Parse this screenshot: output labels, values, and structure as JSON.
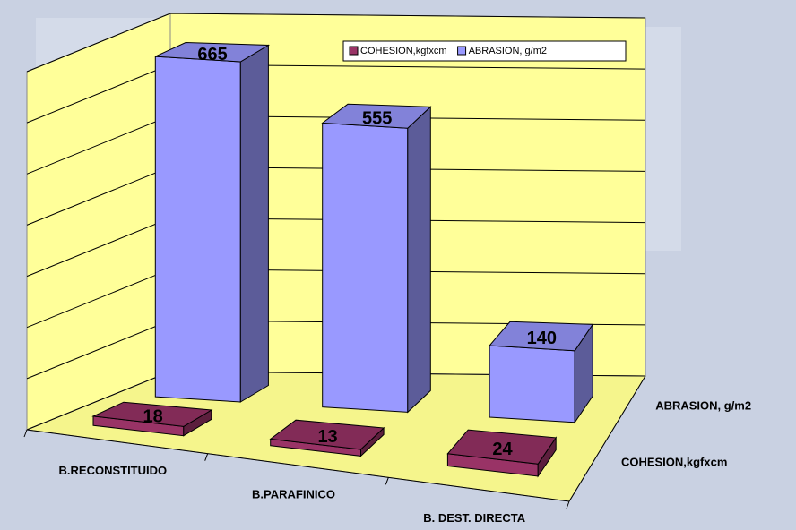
{
  "chart_data": {
    "type": "bar3d",
    "categories": [
      "B.RECONSTITUIDO",
      "B.PARAFINICO",
      "B. DEST. DIRECTA"
    ],
    "series": [
      {
        "name": "COHESION,kgfxcm",
        "color": "#993366",
        "values": [
          18,
          13,
          24
        ]
      },
      {
        "name": "ABRASION, g/m2",
        "color": "#9999ff",
        "values": [
          665,
          555,
          140
        ]
      }
    ],
    "ylim": [
      0,
      700
    ],
    "yticks": [
      0,
      100,
      200,
      300,
      400,
      500,
      600,
      700
    ],
    "grid": true,
    "legend": "top"
  }
}
